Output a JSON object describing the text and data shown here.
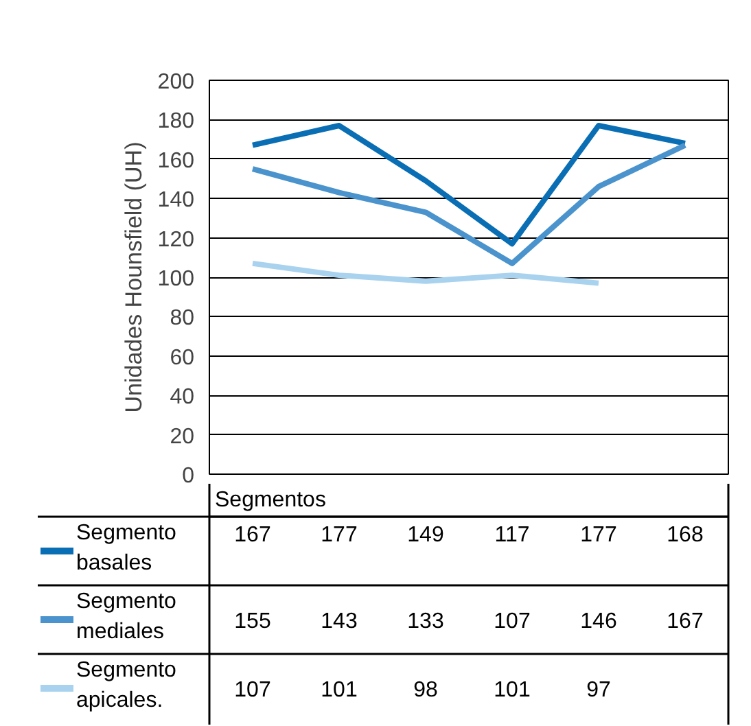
{
  "chart_data": {
    "type": "line",
    "ylabel": "Unidades Hounsfield (UH)",
    "xlabel": "Segmentos",
    "categories": [
      null,
      null,
      null,
      null,
      null,
      null
    ],
    "series": [
      {
        "name": "Segmento basales",
        "color": "#0a6eb4",
        "values": [
          167,
          177,
          149,
          117,
          177,
          168
        ]
      },
      {
        "name": "Segmento mediales",
        "color": "#4a93cc",
        "values": [
          155,
          143,
          133,
          107,
          146,
          167
        ]
      },
      {
        "name": "Segmento apicales.",
        "color": "#a9d2ee",
        "values": [
          107,
          101,
          98,
          101,
          97,
          null
        ]
      }
    ],
    "ylim": [
      0,
      200
    ],
    "yticks": [
      0,
      20,
      40,
      60,
      80,
      100,
      120,
      140,
      160,
      180,
      200
    ],
    "grid": "y",
    "legend": "bottom",
    "marker": "none",
    "line_style": "solid",
    "data_labels": true
  }
}
